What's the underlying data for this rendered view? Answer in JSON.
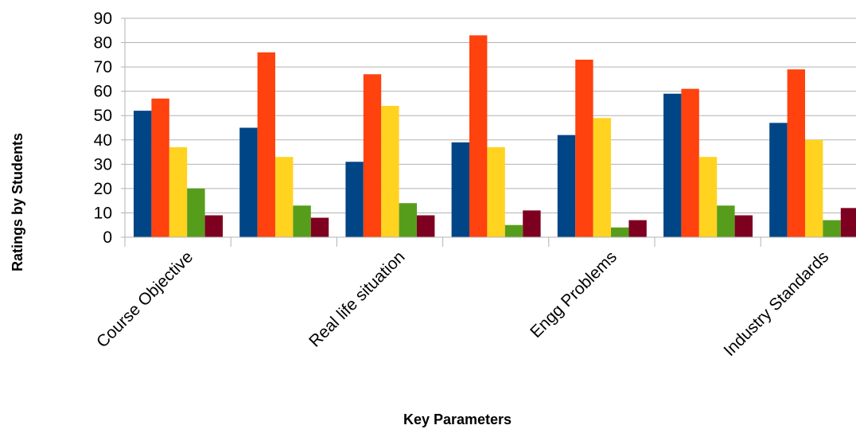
{
  "chart_data": {
    "type": "bar",
    "xlabel": "Key Parameters",
    "ylabel": "Ratings by Students",
    "ylim": [
      0,
      90
    ],
    "yticks": [
      0,
      10,
      20,
      30,
      40,
      50,
      60,
      70,
      80,
      90
    ],
    "grid": true,
    "categories": [
      "Course Objective",
      "",
      "Real life situation",
      "",
      "Engg Problems",
      "",
      "Industry Standards"
    ],
    "colors": [
      "#004586",
      "#ff420e",
      "#ffd320",
      "#579d1c",
      "#7e0021"
    ],
    "series": [
      {
        "values": [
          52,
          45,
          31,
          39,
          42,
          59,
          47
        ]
      },
      {
        "values": [
          57,
          76,
          67,
          83,
          73,
          61,
          69
        ]
      },
      {
        "values": [
          37,
          33,
          54,
          37,
          49,
          33,
          40
        ]
      },
      {
        "values": [
          20,
          13,
          14,
          5,
          4,
          13,
          7
        ]
      },
      {
        "values": [
          9,
          8,
          9,
          11,
          7,
          9,
          12
        ]
      }
    ]
  }
}
